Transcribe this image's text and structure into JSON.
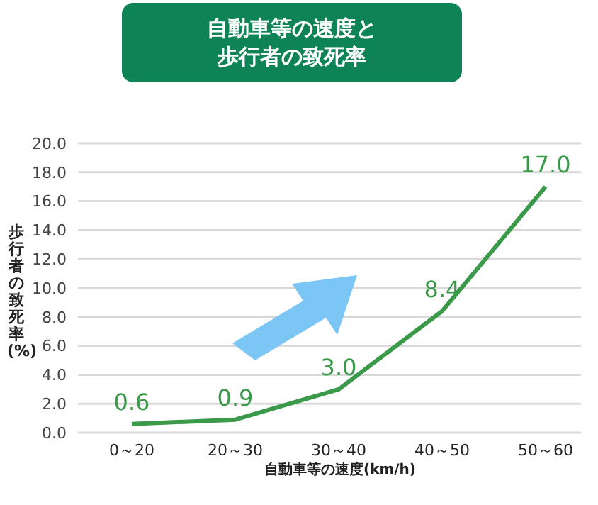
{
  "chart_data": {
    "type": "line",
    "title": "自動車等の速度と歩行者の致死率",
    "xlabel": "自動車等の速度(km/h)",
    "ylabel": "歩行者の致死率(%)",
    "categories": [
      "0～20",
      "20～30",
      "30～40",
      "40～50",
      "50～60"
    ],
    "series": [
      {
        "color": "#3a9a4a",
        "values": [
          0.6,
          0.9,
          3.0,
          8.4,
          17.0
        ]
      }
    ],
    "value_labels": [
      "0.6",
      "0.9",
      "3.0",
      "8.4",
      "17.0"
    ],
    "ylim": [
      0,
      20
    ],
    "yticks": [
      {
        "value": 0,
        "label": "0.0"
      },
      {
        "value": 2,
        "label": "2.0"
      },
      {
        "value": 4,
        "label": "4.0"
      },
      {
        "value": 6,
        "label": "6.0"
      },
      {
        "value": 8,
        "label": "8.0"
      },
      {
        "value": 10,
        "label": "10.0"
      },
      {
        "value": 12,
        "label": "12.0"
      },
      {
        "value": 14,
        "label": "14.0"
      },
      {
        "value": 16,
        "label": "16.0"
      },
      {
        "value": 18,
        "label": "18.0"
      },
      {
        "value": 20,
        "label": "20.0"
      }
    ],
    "grid": "y",
    "marker": "none",
    "line_style": "solid"
  }
}
